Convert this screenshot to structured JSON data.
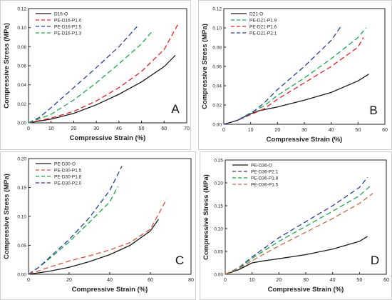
{
  "chart_data": [
    {
      "type": "line",
      "panel_label": "A",
      "xlabel": "Compressive Strain (%)",
      "ylabel": "Compressive Stress (MPa)",
      "xlim": [
        0,
        70
      ],
      "ylim": [
        0,
        0.12
      ],
      "xticks": [
        "0",
        "10",
        "20",
        "30",
        "40",
        "50",
        "60",
        "70"
      ],
      "yticks": [
        "0.00",
        "0.02",
        "0.04",
        "0.06",
        "0.08",
        "0.10",
        "0.12"
      ],
      "grid": false,
      "legend_position": "top-left",
      "series": [
        {
          "name": "D16-O",
          "color": "#1a1a1a",
          "dash": "solid",
          "points": [
            [
              0,
              0
            ],
            [
              10,
              0.004
            ],
            [
              20,
              0.01
            ],
            [
              30,
              0.019
            ],
            [
              40,
              0.03
            ],
            [
              50,
              0.043
            ],
            [
              60,
              0.059
            ],
            [
              65,
              0.071
            ]
          ]
        },
        {
          "name": "PE-D16-P1.0",
          "color": "#e0202a",
          "dash": "long",
          "points": [
            [
              0,
              0
            ],
            [
              10,
              0.005
            ],
            [
              20,
              0.012
            ],
            [
              30,
              0.023
            ],
            [
              40,
              0.037
            ],
            [
              50,
              0.054
            ],
            [
              60,
              0.077
            ],
            [
              66,
              0.103
            ]
          ]
        },
        {
          "name": "PE-D16-P1.5",
          "color": "#2b3e9c",
          "dash": "long",
          "points": [
            [
              0,
              0
            ],
            [
              5,
              0.006
            ],
            [
              10,
              0.016
            ],
            [
              20,
              0.037
            ],
            [
              30,
              0.058
            ],
            [
              40,
              0.08
            ],
            [
              48,
              0.101
            ]
          ]
        },
        {
          "name": "PE-D16-P1.3",
          "color": "#1ea84b",
          "dash": "long",
          "points": [
            [
              0,
              0
            ],
            [
              10,
              0.009
            ],
            [
              20,
              0.024
            ],
            [
              30,
              0.042
            ],
            [
              40,
              0.062
            ],
            [
              50,
              0.083
            ],
            [
              55,
              0.097
            ]
          ]
        }
      ]
    },
    {
      "type": "line",
      "panel_label": "B",
      "xlabel": "Compressive Strain (%)",
      "ylabel": "Compressive Stress (MPa)",
      "xlim": [
        0,
        60
      ],
      "ylim": [
        0,
        0.12
      ],
      "xticks": [
        "0",
        "10",
        "20",
        "30",
        "40",
        "50",
        "60"
      ],
      "yticks": [
        "0.00",
        "0.02",
        "0.04",
        "0.06",
        "0.08",
        "0.10",
        "0.12"
      ],
      "grid": false,
      "legend_position": "top-left",
      "series": [
        {
          "name": "D21-O",
          "color": "#1a1a1a",
          "dash": "solid",
          "points": [
            [
              0,
              0
            ],
            [
              5,
              0.004
            ],
            [
              10,
              0.011
            ],
            [
              13,
              0.014
            ],
            [
              20,
              0.018
            ],
            [
              30,
              0.025
            ],
            [
              40,
              0.033
            ],
            [
              50,
              0.045
            ],
            [
              54,
              0.052
            ]
          ]
        },
        {
          "name": "PE-D21-P1.9",
          "color": "#1ea84b",
          "dash": "long",
          "points": [
            [
              0,
              0
            ],
            [
              5,
              0.004
            ],
            [
              10,
              0.012
            ],
            [
              15,
              0.019
            ],
            [
              20,
              0.03
            ],
            [
              30,
              0.048
            ],
            [
              40,
              0.068
            ],
            [
              50,
              0.09
            ],
            [
              53,
              0.1
            ]
          ]
        },
        {
          "name": "PE-D21-P1.6",
          "color": "#e0202a",
          "dash": "long",
          "points": [
            [
              0,
              0
            ],
            [
              5,
              0.004
            ],
            [
              10,
              0.01
            ],
            [
              15,
              0.016
            ],
            [
              20,
              0.026
            ],
            [
              30,
              0.043
            ],
            [
              40,
              0.06
            ],
            [
              50,
              0.08
            ],
            [
              52,
              0.09
            ]
          ]
        },
        {
          "name": "PE-D21-P2.1",
          "color": "#2b3e9c",
          "dash": "long",
          "points": [
            [
              0,
              0
            ],
            [
              5,
              0.004
            ],
            [
              10,
              0.011
            ],
            [
              15,
              0.022
            ],
            [
              20,
              0.036
            ],
            [
              30,
              0.06
            ],
            [
              40,
              0.087
            ],
            [
              44,
              0.103
            ]
          ]
        }
      ]
    },
    {
      "type": "line",
      "panel_label": "C",
      "xlabel": "Compressive Strain (%)",
      "ylabel": "Compressive Stress (MPa)",
      "xlim": [
        0,
        80
      ],
      "ylim": [
        0,
        0.2
      ],
      "xticks": [
        "0",
        "20",
        "40",
        "60",
        "80"
      ],
      "yticks": [
        "0.00",
        "0.05",
        "0.10",
        "0.15",
        "0.20"
      ],
      "grid": false,
      "legend_position": "top-left",
      "series": [
        {
          "name": "PE-D30-O",
          "color": "#1a1a1a",
          "dash": "solid",
          "points": [
            [
              0,
              0
            ],
            [
              10,
              0.005
            ],
            [
              20,
              0.012
            ],
            [
              30,
              0.022
            ],
            [
              40,
              0.034
            ],
            [
              50,
              0.05
            ],
            [
              60,
              0.075
            ],
            [
              64,
              0.095
            ]
          ]
        },
        {
          "name": "PE-D30-P1.5",
          "color": "#d9533a",
          "dash": "long",
          "points": [
            [
              0,
              0
            ],
            [
              10,
              0.012
            ],
            [
              20,
              0.023
            ],
            [
              30,
              0.032
            ],
            [
              40,
              0.042
            ],
            [
              50,
              0.055
            ],
            [
              60,
              0.078
            ],
            [
              68,
              0.13
            ]
          ]
        },
        {
          "name": "PE-D30-P1.8",
          "color": "#1ea84b",
          "dash": "long",
          "points": [
            [
              0,
              0
            ],
            [
              5,
              0.012
            ],
            [
              10,
              0.026
            ],
            [
              20,
              0.056
            ],
            [
              30,
              0.09
            ],
            [
              40,
              0.125
            ],
            [
              44,
              0.152
            ]
          ]
        },
        {
          "name": "PE-D30-P2.0",
          "color": "#2b3e9c",
          "dash": "long",
          "points": [
            [
              0,
              0
            ],
            [
              5,
              0.012
            ],
            [
              10,
              0.028
            ],
            [
              20,
              0.06
            ],
            [
              30,
              0.098
            ],
            [
              40,
              0.145
            ],
            [
              46,
              0.187
            ]
          ]
        }
      ]
    },
    {
      "type": "line",
      "panel_label": "D",
      "xlabel": "Compressive Strain (%)",
      "ylabel": "Compressive Stress (MPa)",
      "xlim": [
        0,
        60
      ],
      "ylim": [
        0,
        0.25
      ],
      "xticks": [
        "0",
        "10",
        "20",
        "30",
        "40",
        "50",
        "60"
      ],
      "yticks": [
        "0.00",
        "0.05",
        "0.10",
        "0.15",
        "0.20",
        "0.25"
      ],
      "grid": false,
      "legend_position": "top-left",
      "series": [
        {
          "name": "PE-D36-O",
          "color": "#1a1a1a",
          "dash": "solid",
          "points": [
            [
              0,
              0
            ],
            [
              5,
              0.01
            ],
            [
              10,
              0.025
            ],
            [
              15,
              0.03
            ],
            [
              20,
              0.034
            ],
            [
              30,
              0.043
            ],
            [
              40,
              0.055
            ],
            [
              50,
              0.072
            ],
            [
              53,
              0.083
            ]
          ]
        },
        {
          "name": "PE-D36-P2.1",
          "color": "#2b3e9c",
          "dash": "long",
          "points": [
            [
              0,
              0
            ],
            [
              5,
              0.014
            ],
            [
              10,
              0.038
            ],
            [
              20,
              0.08
            ],
            [
              30,
              0.115
            ],
            [
              40,
              0.15
            ],
            [
              50,
              0.19
            ],
            [
              53,
              0.212
            ]
          ]
        },
        {
          "name": "PE-D36-P1.8",
          "color": "#1ea84b",
          "dash": "long",
          "points": [
            [
              0,
              0
            ],
            [
              5,
              0.013
            ],
            [
              10,
              0.035
            ],
            [
              20,
              0.072
            ],
            [
              30,
              0.105
            ],
            [
              40,
              0.138
            ],
            [
              50,
              0.172
            ],
            [
              54,
              0.193
            ]
          ]
        },
        {
          "name": "PE-D36-P1.5",
          "color": "#c0704a",
          "dash": "long",
          "points": [
            [
              0,
              0
            ],
            [
              5,
              0.012
            ],
            [
              10,
              0.03
            ],
            [
              20,
              0.062
            ],
            [
              30,
              0.092
            ],
            [
              40,
              0.122
            ],
            [
              50,
              0.155
            ],
            [
              55,
              0.177
            ]
          ]
        }
      ]
    }
  ]
}
